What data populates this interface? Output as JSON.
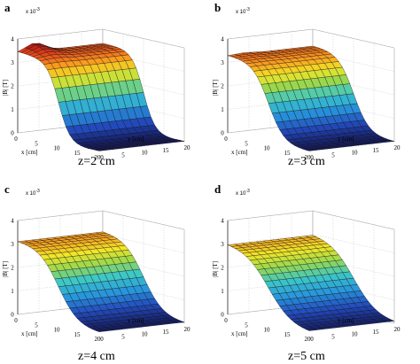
{
  "chart_data": [
    {
      "type": "surface",
      "panel_label": "a",
      "caption": "z=2 cm",
      "zlabel": "|B| [T]",
      "z_exponent": "x 10",
      "z_exponent_power": "-3",
      "xlabel": "x [cm]",
      "ylabel": "y [cm]",
      "x_ticks": [
        "0",
        "5",
        "10",
        "15",
        "20"
      ],
      "y_ticks": [
        "0",
        "5",
        "10",
        "15",
        "20"
      ],
      "z_ticks": [
        "0",
        "1",
        "2",
        "3",
        "4"
      ],
      "xlim": [
        0,
        20
      ],
      "ylim": [
        0,
        20
      ],
      "zlim": [
        0,
        4
      ],
      "surface": {
        "plateau": 3.4,
        "edge_peak": 3.75,
        "transition_x": 10,
        "width": 1.4
      }
    },
    {
      "type": "surface",
      "panel_label": "b",
      "caption": "z=3 cm",
      "zlabel": "|B| [T]",
      "z_exponent": "x 10",
      "z_exponent_power": "-3",
      "xlabel": "x [cm]",
      "ylabel": "y [cm]",
      "x_ticks": [
        "0",
        "5",
        "10",
        "15",
        "20"
      ],
      "y_ticks": [
        "0",
        "5",
        "10",
        "15",
        "20"
      ],
      "z_ticks": [
        "0",
        "1",
        "2",
        "3",
        "4"
      ],
      "xlim": [
        0,
        20
      ],
      "ylim": [
        0,
        20
      ],
      "zlim": [
        0,
        4
      ],
      "surface": {
        "plateau": 3.3,
        "edge_peak": 3.35,
        "transition_x": 10,
        "width": 1.9
      }
    },
    {
      "type": "surface",
      "panel_label": "c",
      "caption": "z=4 cm",
      "zlabel": "|B| [T]",
      "z_exponent": "x 10",
      "z_exponent_power": "-3",
      "xlabel": "x [cm]",
      "ylabel": "y [cm]",
      "x_ticks": [
        "0",
        "5",
        "10",
        "15",
        "20"
      ],
      "y_ticks": [
        "0",
        "5",
        "10",
        "15",
        "20"
      ],
      "z_ticks": [
        "0",
        "1",
        "2",
        "3",
        "4"
      ],
      "xlim": [
        0,
        20
      ],
      "ylim": [
        0,
        20
      ],
      "zlim": [
        0,
        4
      ],
      "surface": {
        "plateau": 3.15,
        "edge_peak": 3.15,
        "transition_x": 10,
        "width": 2.4
      }
    },
    {
      "type": "surface",
      "panel_label": "d",
      "caption": "z=5 cm",
      "zlabel": "|B| [T]",
      "z_exponent": "x 10",
      "z_exponent_power": "-3",
      "xlabel": "x [cm]",
      "ylabel": "y [cm]",
      "x_ticks": [
        "0",
        "5",
        "10",
        "15",
        "20"
      ],
      "y_ticks": [
        "0",
        "5",
        "10",
        "15",
        "20"
      ],
      "z_ticks": [
        "0",
        "1",
        "2",
        "3",
        "4"
      ],
      "xlim": [
        0,
        20
      ],
      "ylim": [
        0,
        20
      ],
      "zlim": [
        0,
        4
      ],
      "surface": {
        "plateau": 3.05,
        "edge_peak": 3.05,
        "transition_x": 10,
        "width": 2.9
      }
    }
  ]
}
